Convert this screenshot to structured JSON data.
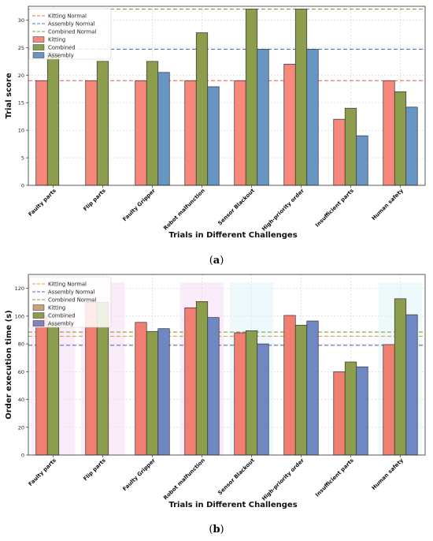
{
  "chart_data": [
    {
      "type": "bar",
      "panel_label": "a",
      "xlabel": "Trials in Different Challenges",
      "ylabel": "Trial score",
      "ylim": [
        0,
        32.5
      ],
      "yticks": [
        0,
        5,
        10,
        15,
        20,
        25,
        30
      ],
      "grid": true,
      "legend_placement": "top-left",
      "categories": [
        "Faulty parts",
        "Flip parts",
        "Faulty Gripper",
        "Robot malfunction",
        "Sensor Blackout",
        "High-priority order",
        "Insufficient parts",
        "Human safety"
      ],
      "series": [
        {
          "name": "Kitting",
          "color": "#f8877c",
          "values": [
            19,
            19,
            19,
            19,
            19,
            22,
            12,
            19
          ]
        },
        {
          "name": "Combined",
          "color": "#8c9e4e",
          "values": [
            24,
            22.5,
            22.5,
            27.7,
            32,
            32,
            14,
            17
          ]
        },
        {
          "name": "Assembly",
          "color": "#6796c4",
          "values": [
            null,
            null,
            20.5,
            17.9,
            24.7,
            24.7,
            9,
            14.2
          ]
        }
      ],
      "reference_lines": [
        {
          "name": "Kitting Normal",
          "value": 19,
          "color": "#f06a6a"
        },
        {
          "name": "Assembly Normal",
          "value": 24.7,
          "color": "#4f78b5"
        },
        {
          "name": "Combined Normal",
          "value": 32,
          "color": "#8a9a3a"
        }
      ]
    },
    {
      "type": "bar",
      "panel_label": "b",
      "xlabel": "Trials in Different Challenges",
      "ylabel": "Order execution time (s)",
      "ylim": [
        0,
        130
      ],
      "yticks": [
        0,
        20,
        40,
        60,
        80,
        100,
        120
      ],
      "grid": true,
      "legend_placement": "top-left",
      "categories": [
        "Faulty parts",
        "Flip parts",
        "Faulty Gripper",
        "Robot malfunction",
        "Sensor Blackout",
        "High-priority order",
        "Insufficient parts",
        "Human safety"
      ],
      "series": [
        {
          "name": "Kitting",
          "color": "#f07f72",
          "legend_color": "#c8a07e",
          "values": [
            100,
            110,
            95.5,
            106,
            88,
            100.5,
            60,
            79.5
          ]
        },
        {
          "name": "Combined",
          "color": "#8c9e4e",
          "values": [
            94,
            110,
            89,
            110.5,
            89.5,
            93.5,
            67,
            112.5
          ]
        },
        {
          "name": "Assembly",
          "color": "#6f87c2",
          "legend_color": "#7f82bc",
          "values": [
            null,
            null,
            91,
            99,
            80,
            96.5,
            63.5,
            101
          ]
        }
      ],
      "reference_lines": [
        {
          "name": "Kitting Normal",
          "value": 85.5,
          "color": "#e0a040"
        },
        {
          "name": "Assembly Normal",
          "value": 79,
          "color": "#5866c0"
        },
        {
          "name": "Combined Normal",
          "value": 88.5,
          "color": "#8a9a3a"
        }
      ]
    }
  ]
}
